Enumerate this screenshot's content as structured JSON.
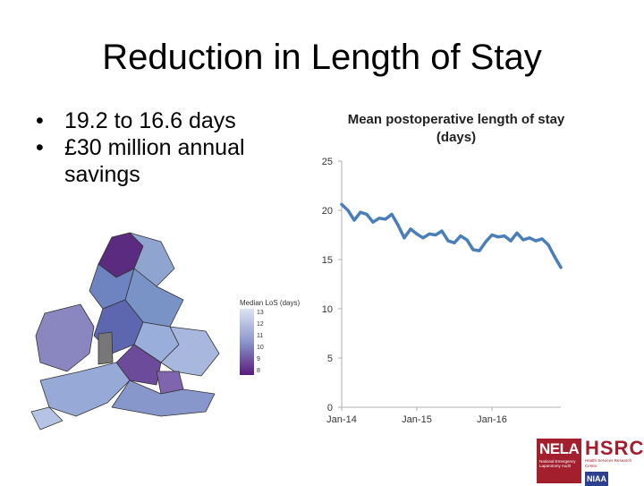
{
  "slide": {
    "title": "Reduction in Length of Stay",
    "bullets": [
      "19.2 to 16.6 days",
      "£30 million annual savings"
    ]
  },
  "map": {
    "legend_title": "Median LoS (days)",
    "legend_ticks": [
      "13",
      "12",
      "11",
      "10",
      "9",
      "8"
    ]
  },
  "logos": {
    "nela": "NELA",
    "nela_sub": "National Emergency Laparotomy Audit",
    "hsrc": "HSRC",
    "hsrc_sub": "Health Services Research Centre",
    "niaa": "NIAA"
  },
  "colors": {
    "line": "#4a7ebb",
    "axis": "#b0b0b0",
    "nela": "#a31f2e",
    "hsrc": "#a31f2e",
    "niaa": "#2e3f8f"
  },
  "chart_data": {
    "type": "line",
    "title": "Mean postoperative length of stay (days)",
    "xlabel": "",
    "ylabel": "",
    "ylim": [
      0,
      25
    ],
    "yticks": [
      0,
      5,
      10,
      15,
      20,
      25
    ],
    "xtick_labels": [
      "Jan-14",
      "Jan-15",
      "Jan-16"
    ],
    "xtick_index": [
      0,
      12,
      24
    ],
    "series": [
      {
        "name": "Mean postoperative length of stay",
        "values": [
          20.6,
          20.0,
          19.0,
          19.8,
          19.6,
          18.8,
          19.2,
          19.1,
          19.6,
          18.5,
          17.2,
          18.1,
          17.6,
          17.2,
          17.6,
          17.5,
          17.9,
          16.9,
          16.7,
          17.4,
          17.0,
          16.0,
          15.9,
          16.8,
          17.5,
          17.3,
          17.4,
          16.9,
          17.7,
          17.0,
          17.2,
          16.9,
          17.1,
          16.5,
          15.3,
          14.2
        ]
      }
    ]
  }
}
